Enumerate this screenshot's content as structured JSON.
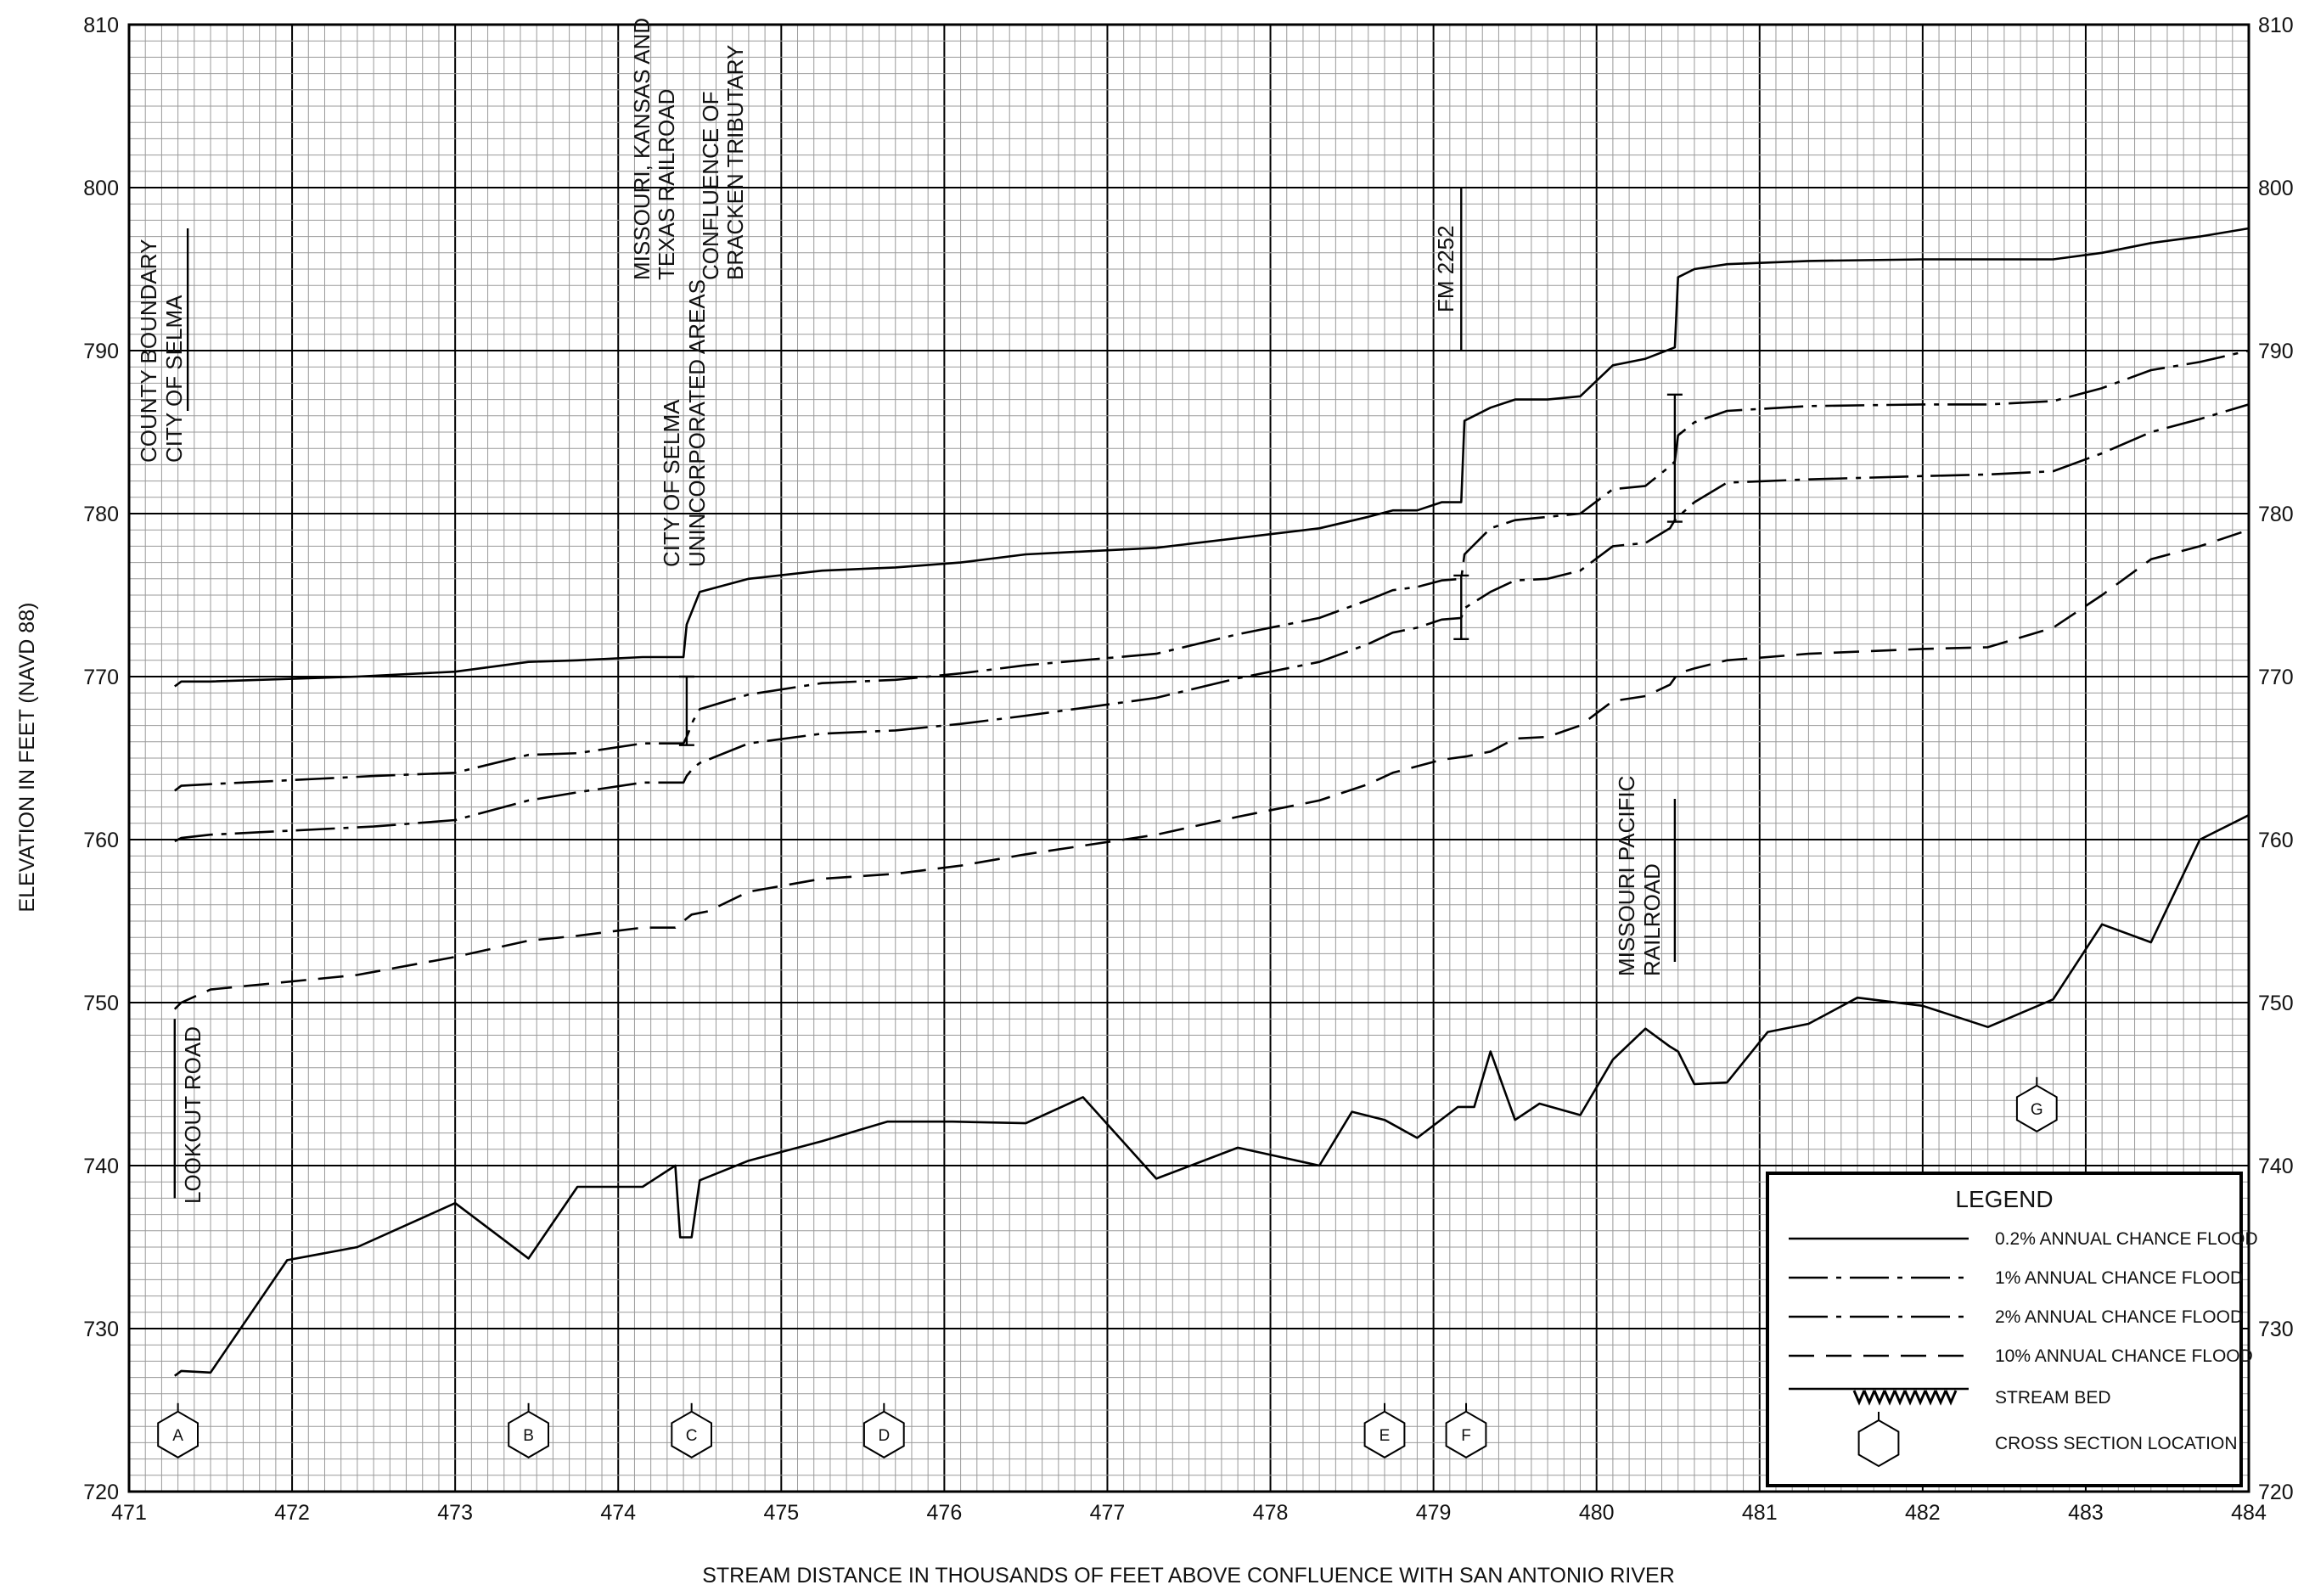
{
  "chart_data": {
    "type": "line",
    "title": "",
    "xlabel": "STREAM DISTANCE IN THOUSANDS OF FEET ABOVE CONFLUENCE WITH SAN ANTONIO RIVER",
    "ylabel": "ELEVATION IN FEET (NAVD 88)",
    "xlim": [
      471,
      484
    ],
    "ylim": [
      720,
      810
    ],
    "x_ticks": [
      "471",
      "472",
      "473",
      "474",
      "475",
      "476",
      "477",
      "478",
      "479",
      "480",
      "481",
      "482",
      "483",
      "484"
    ],
    "y_ticks": [
      "720",
      "730",
      "740",
      "750",
      "760",
      "770",
      "780",
      "790",
      "800",
      "810"
    ],
    "grid": true,
    "legend": {
      "title": "LEGEND",
      "placement": "bottom-right",
      "entries": [
        {
          "label": "0.2% ANNUAL CHANCE FLOOD",
          "style": "solid"
        },
        {
          "label": "1% ANNUAL CHANCE FLOOD",
          "style": "dash-dot"
        },
        {
          "label": "2% ANNUAL CHANCE FLOOD",
          "style": "dash-dot"
        },
        {
          "label": "10% ANNUAL CHANCE FLOOD",
          "style": "dashed"
        },
        {
          "label": "STREAM BED",
          "style": "hatched"
        },
        {
          "label": "CROSS SECTION LOCATION",
          "style": "hexagon"
        }
      ]
    },
    "series": [
      {
        "style": "solid",
        "x": [
          471.28,
          471.32,
          471.5,
          472.4,
          473.0,
          473.45,
          473.75,
          474.15,
          474.4,
          474.42,
          474.46,
          474.5,
          474.8,
          475.25,
          475.7,
          476.1,
          476.5,
          477.3,
          477.8,
          478.3,
          478.6,
          478.75,
          478.9,
          479.05,
          479.17,
          479.19,
          479.35,
          479.5,
          479.7,
          479.9,
          480.1,
          480.3,
          480.48,
          480.5,
          480.6,
          480.8,
          481.3,
          482.0,
          482.4,
          482.8,
          483.1,
          483.4,
          483.7,
          484.0
        ],
        "y": [
          769.4,
          769.7,
          769.7,
          770.0,
          770.3,
          770.9,
          771.0,
          771.2,
          771.2,
          773.2,
          774.2,
          775.2,
          776.0,
          776.5,
          776.7,
          777.0,
          777.5,
          777.9,
          778.5,
          779.1,
          779.8,
          780.2,
          780.2,
          780.7,
          780.7,
          785.7,
          786.5,
          787.0,
          787.0,
          787.2,
          789.1,
          789.5,
          790.2,
          794.5,
          795.0,
          795.3,
          795.5,
          795.6,
          795.6,
          795.6,
          796.0,
          796.6,
          797.0,
          797.5
        ]
      },
      {
        "style": "dash-dot",
        "x": [
          471.28,
          471.32,
          471.5,
          472.5,
          473.0,
          473.45,
          473.75,
          474.15,
          474.4,
          474.42,
          474.46,
          474.5,
          474.8,
          475.25,
          475.7,
          476.1,
          476.5,
          477.3,
          477.8,
          478.3,
          478.6,
          478.75,
          478.9,
          479.05,
          479.17,
          479.19,
          479.35,
          479.5,
          479.7,
          479.9,
          480.1,
          480.3,
          480.45,
          480.48,
          480.5,
          480.6,
          480.8,
          481.3,
          482.0,
          482.4,
          482.8,
          483.1,
          483.4,
          483.7,
          484.0
        ],
        "y": [
          763.0,
          763.3,
          763.4,
          763.9,
          764.1,
          765.2,
          765.3,
          765.9,
          765.9,
          766.3,
          767.3,
          768.0,
          768.9,
          769.6,
          769.8,
          770.2,
          770.7,
          771.4,
          772.6,
          773.6,
          774.7,
          775.3,
          775.5,
          775.9,
          776.0,
          777.5,
          779.1,
          779.6,
          779.8,
          780.0,
          781.5,
          781.7,
          782.9,
          783.2,
          784.8,
          785.6,
          786.3,
          786.6,
          786.7,
          786.7,
          786.9,
          787.7,
          788.8,
          789.3,
          790.0
        ]
      },
      {
        "style": "dash-dot",
        "x": [
          471.28,
          471.32,
          471.5,
          472.5,
          473.0,
          473.45,
          473.75,
          474.15,
          474.4,
          474.42,
          474.46,
          474.5,
          474.8,
          475.25,
          475.7,
          476.1,
          476.5,
          477.3,
          477.8,
          478.3,
          478.6,
          478.75,
          478.9,
          479.05,
          479.17,
          479.19,
          479.35,
          479.5,
          479.7,
          479.9,
          480.1,
          480.3,
          480.45,
          480.48,
          480.5,
          480.6,
          480.8,
          481.3,
          482.0,
          482.4,
          482.8,
          483.1,
          483.4,
          483.7,
          484.0
        ],
        "y": [
          759.9,
          760.1,
          760.3,
          760.8,
          761.2,
          762.4,
          762.9,
          763.5,
          763.5,
          763.9,
          764.4,
          764.7,
          765.9,
          766.5,
          766.7,
          767.1,
          767.6,
          768.7,
          769.9,
          770.9,
          772.0,
          772.7,
          773.0,
          773.5,
          773.6,
          774.2,
          775.2,
          775.9,
          776.0,
          776.5,
          778.0,
          778.2,
          779.1,
          779.6,
          779.8,
          780.7,
          781.9,
          782.1,
          782.3,
          782.4,
          782.6,
          783.7,
          785.0,
          785.8,
          786.7
        ]
      },
      {
        "style": "dashed",
        "x": [
          471.28,
          471.32,
          471.5,
          472.4,
          473.0,
          473.45,
          473.75,
          474.15,
          474.35,
          474.4,
          474.45,
          474.55,
          474.8,
          475.25,
          475.7,
          476.1,
          476.5,
          477.3,
          477.8,
          478.3,
          478.6,
          478.75,
          478.9,
          479.05,
          479.2,
          479.35,
          479.5,
          479.7,
          479.9,
          480.1,
          480.3,
          480.45,
          480.5,
          480.6,
          480.8,
          481.3,
          482.0,
          482.4,
          482.8,
          483.1,
          483.4,
          483.7,
          484.0
        ],
        "y": [
          749.6,
          750.0,
          750.8,
          751.7,
          752.8,
          753.8,
          754.1,
          754.6,
          754.6,
          755.0,
          755.4,
          755.6,
          756.8,
          757.6,
          757.9,
          758.4,
          759.1,
          760.3,
          761.4,
          762.4,
          763.4,
          764.1,
          764.5,
          764.9,
          765.1,
          765.4,
          766.2,
          766.3,
          767.0,
          768.5,
          768.8,
          769.5,
          770.2,
          770.5,
          771.0,
          771.4,
          771.7,
          771.8,
          773.0,
          775.0,
          777.2,
          778.0,
          779.0
        ]
      },
      {
        "style": "streambed",
        "x": [
          471.28,
          471.32,
          471.5,
          471.97,
          472.4,
          473.0,
          473.45,
          473.75,
          474.15,
          474.35,
          474.38,
          474.45,
          474.5,
          474.8,
          475.25,
          475.65,
          476.05,
          476.5,
          476.85,
          477.3,
          477.8,
          478.3,
          478.5,
          478.7,
          478.9,
          479.15,
          479.25,
          479.35,
          479.5,
          479.65,
          479.9,
          480.1,
          480.3,
          480.45,
          480.5,
          480.6,
          480.8,
          481.05,
          481.3,
          481.6,
          482.0,
          482.4,
          482.8,
          483.1,
          483.4,
          483.7,
          484.0
        ],
        "y": [
          727.1,
          727.4,
          727.3,
          734.2,
          735.0,
          737.7,
          734.3,
          738.7,
          738.7,
          740.0,
          735.6,
          735.6,
          739.1,
          740.3,
          741.5,
          742.7,
          742.7,
          742.6,
          744.2,
          739.2,
          741.1,
          740.0,
          743.3,
          742.8,
          741.7,
          743.6,
          743.6,
          747.0,
          742.8,
          743.8,
          743.1,
          746.5,
          748.4,
          747.3,
          747.0,
          745.0,
          745.1,
          748.2,
          748.7,
          750.3,
          749.8,
          748.5,
          750.2,
          754.8,
          753.7,
          760.0,
          761.5
        ]
      }
    ],
    "annotations": [
      {
        "lines": [
          "COUNTY BOUNDARY",
          "CITY OF SELMA"
        ],
        "x": 471.3
      },
      {
        "lines": [
          "LOOKOUT ROAD"
        ],
        "x": 471.3
      },
      {
        "lines": [
          "MISSOURI, KANSAS AND",
          "TEXAS RAILROAD"
        ],
        "x": 474.42
      },
      {
        "lines": [
          "CONFLUENCE OF",
          "BRACKEN TRIBUTARY"
        ],
        "x": 474.48
      },
      {
        "lines": [
          "CITY OF SELMA",
          "UNINCORPORATED AREAS"
        ],
        "x": 474.42
      },
      {
        "lines": [
          "FM 2252"
        ],
        "x": 479.17
      },
      {
        "lines": [
          "MISSOURI PACIFIC",
          "RAILROAD"
        ],
        "x": 480.48
      }
    ],
    "cross_sections": [
      {
        "label": "A",
        "x": 471.3,
        "y": 723.5
      },
      {
        "label": "B",
        "x": 473.45,
        "y": 723.5
      },
      {
        "label": "C",
        "x": 474.45,
        "y": 723.5
      },
      {
        "label": "D",
        "x": 475.63,
        "y": 723.5
      },
      {
        "label": "E",
        "x": 478.7,
        "y": 723.5
      },
      {
        "label": "F",
        "x": 479.2,
        "y": 723.5
      },
      {
        "label": "G",
        "x": 482.7,
        "y": 743.5
      }
    ]
  }
}
